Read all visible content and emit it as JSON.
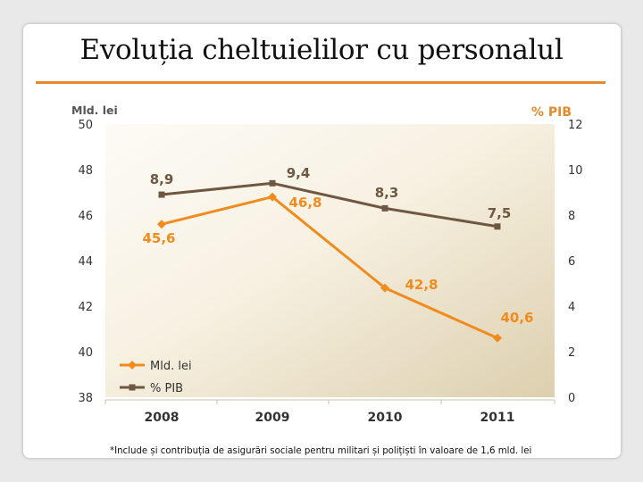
{
  "slide": {
    "title": "Evoluția cheltuielilor cu personalul",
    "footnote": "*Include și contribuția de asigurări sociale pentru militari și polițiști în valoare de 1,6 mld. lei"
  },
  "colors": {
    "accent": "#e5892a",
    "series_mld": "#f08c1e",
    "series_pib": "#6f5842",
    "axis_text": "#333333",
    "axis_title_left": "#555555",
    "axis_title_right": "#e5892a"
  },
  "chart_data": {
    "type": "line",
    "title": "Evoluția cheltuielilor cu personalul",
    "categories": [
      "2008",
      "2009",
      "2010",
      "2011"
    ],
    "series": [
      {
        "name": "Mld. lei",
        "axis": "left",
        "values": [
          45.6,
          46.8,
          42.8,
          40.6
        ],
        "labels": [
          "45,6",
          "46,8",
          "42,8",
          "40,6"
        ],
        "marker": "diamond"
      },
      {
        "name": "% PIB",
        "axis": "right",
        "values": [
          8.9,
          9.4,
          8.3,
          7.5
        ],
        "labels": [
          "8,9",
          "9,4",
          "8,3",
          "7,5"
        ],
        "marker": "square"
      }
    ],
    "y_left": {
      "label": "Mld. lei",
      "lim": [
        38,
        50
      ],
      "ticks": [
        "50",
        "48",
        "46",
        "44",
        "42",
        "40",
        "38"
      ]
    },
    "y_right": {
      "label": "% PIB",
      "lim": [
        0,
        12
      ],
      "ticks": [
        "12",
        "10",
        "8",
        "6",
        "4",
        "2",
        "0"
      ]
    },
    "legend": {
      "position": "bottom-left",
      "entries": [
        "Mld. lei",
        "% PIB"
      ]
    },
    "grid": false
  }
}
